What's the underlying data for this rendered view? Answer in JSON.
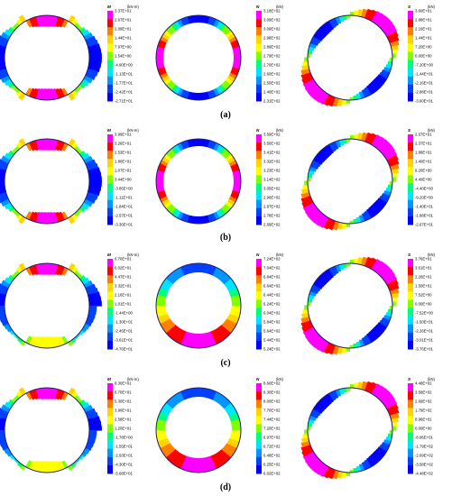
{
  "figure": {
    "rows": [
      {
        "label": "(a)",
        "panels": [
          {
            "name": "M",
            "unit": "(kN·m)",
            "kind": "M",
            "ticks": [
              "3.37E+01",
              "2.67E+01",
              "2.09E+01",
              "1.44E+01",
              "7.97E+00",
              "1.54E+00",
              "-4.90E+00",
              "-1.13E+01",
              "-1.77E+01",
              "-2.42E+01",
              "-2.71E+01"
            ]
          },
          {
            "name": "N",
            "unit": "(kN)",
            "kind": "N",
            "ticks": [
              "3.18E+02",
              "3.09E+02",
              "3.09E+02",
              "2.98E+02",
              "2.89E+02",
              "2.79E+02",
              "2.70E+02",
              "2.60E+02",
              "2.50E+02",
              "2.40E+02",
              "2.31E+02"
            ]
          },
          {
            "name": "S",
            "unit": "(kN)",
            "kind": "S",
            "ticks": [
              "3.60E+01",
              "2.88E+01",
              "2.16E+01",
              "1.44E+01",
              "7.20E+00",
              "0.00E+00",
              "-7.20E+00",
              "-1.44E+01",
              "-2.16E+01",
              "-2.88E+01",
              "-3.60E+01"
            ]
          }
        ]
      },
      {
        "label": "(b)",
        "panels": [
          {
            "name": "M",
            "unit": "(kN·m)",
            "kind": "M",
            "ticks": [
              "3.99E+01",
              "3.26E+01",
              "2.53E+01",
              "1.80E+01",
              "1.07E+01",
              "3.44E+00",
              "-3.85E+00",
              "-1.11E+01",
              "-1.84E+01",
              "-2.57E+01",
              "-3.30E+01"
            ]
          },
          {
            "name": "N",
            "unit": "(kN)",
            "kind": "N",
            "ticks": [
              "3.59E+02",
              "3.50E+02",
              "3.41E+02",
              "3.32E+02",
              "3.23E+02",
              "3.14E+02",
              "3.05E+02",
              "2.96E+02",
              "2.87E+02",
              "2.78E+02",
              "2.69E+02"
            ]
          },
          {
            "name": "S",
            "unit": "(kN)",
            "kind": "S",
            "ticks": [
              "2.67E+01",
              "2.37E+01",
              "1.88E+01",
              "1.40E+01",
              "9.20E+00",
              "4.40E+00",
              "-4.40E+00",
              "-9.20E+00",
              "-1.40E+01",
              "-1.88E+01",
              "-2.67E+01"
            ]
          }
        ]
      },
      {
        "label": "(c)",
        "panels": [
          {
            "name": "M",
            "unit": "(kN·m)",
            "kind": "M",
            "ticks": [
              "6.70E+01",
              "6.02E+01",
              "4.47E+01",
              "3.32E+01",
              "2.16E+01",
              "1.01E+01",
              "-1.44E+00",
              "-1.30E+01",
              "-2.45E+01",
              "-3.61E+01",
              "-4.76E+01"
            ]
          },
          {
            "name": "N",
            "unit": "(kN)",
            "kind": "N",
            "ticks": [
              "7.24E+02",
              "7.04E+02",
              "6.84E+02",
              "6.64E+02",
              "6.44E+02",
              "6.24E+02",
              "6.04E+02",
              "5.84E+02",
              "5.64E+02",
              "5.44E+02",
              "5.24E+02"
            ]
          },
          {
            "name": "S",
            "unit": "(kN)",
            "kind": "S",
            "ticks": [
              "3.76E+01",
              "3.01E+01",
              "2.26E+01",
              "1.50E+01",
              "7.52E+00",
              "0.00E+00",
              "-7.52E+00",
              "-1.50E+01",
              "-2.26E+01",
              "-3.01E+01",
              "-3.76E+01"
            ]
          }
        ]
      },
      {
        "label": "(d)",
        "panels": [
          {
            "name": "M",
            "unit": "(kN·m)",
            "kind": "M",
            "ticks": [
              "8.30E+01",
              "6.70E+01",
              "5.30E+01",
              "3.90E+01",
              "2.58E+01",
              "1.20E+01",
              "-1.78E+00",
              "-1.55E+01",
              "-2.93E+01",
              "-4.30E+01",
              "-5.68E+01"
            ]
          },
          {
            "name": "N",
            "unit": "(kN)",
            "kind": "N",
            "ticks": [
              "8.60E+02",
              "8.30E+02",
              "8.00E+02",
              "7.70E+02",
              "7.44E+02",
              "7.20E+02",
              "6.97E+02",
              "6.72E+02",
              "6.48E+02",
              "6.25E+02",
              "6.02E+02"
            ]
          },
          {
            "name": "S",
            "unit": "(kN)",
            "kind": "S",
            "ticks": [
              "4.48E+02",
              "3.58E+02",
              "2.69E+02",
              "1.79E+02",
              "8.96E+01",
              "0.00E+00",
              "-8.96E+01",
              "-1.79E+02",
              "-2.69E+02",
              "-3.58E+02",
              "-4.48E+02"
            ]
          }
        ]
      }
    ],
    "colorbar_colors": [
      "#ff00ff",
      "#ff0000",
      "#ff8000",
      "#ffd400",
      "#ffff00",
      "#7fff00",
      "#00ff80",
      "#00e5ff",
      "#0095ff",
      "#0040ff",
      "#0000ff"
    ],
    "ring_color": "#1f1f6b"
  }
}
